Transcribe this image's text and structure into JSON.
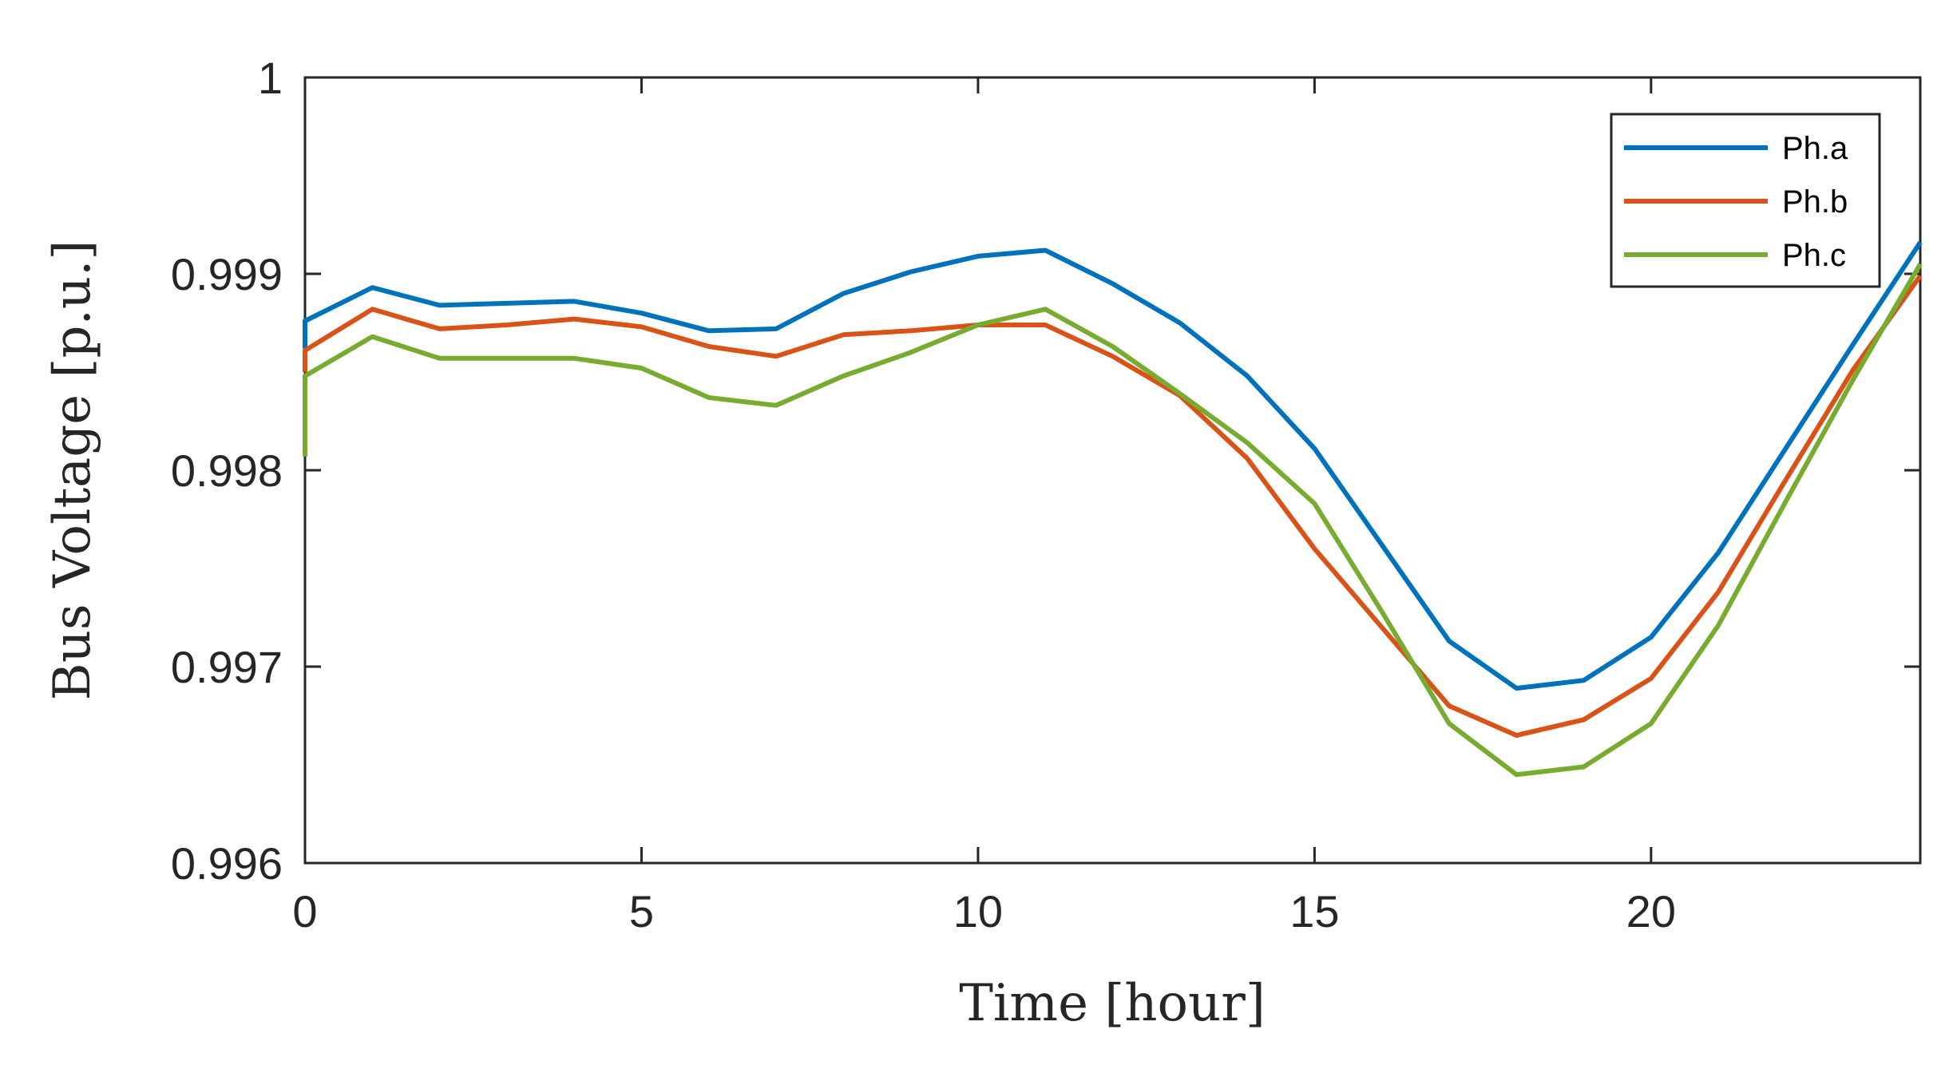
{
  "chart_data": {
    "type": "line",
    "xlabel": "Time [hour]",
    "ylabel": "Bus Voltage [p.u.]",
    "xlim": [
      0,
      24
    ],
    "ylim": [
      0.996,
      1.0
    ],
    "xticks": [
      0,
      5,
      10,
      15,
      20
    ],
    "xtick_labels": [
      "0",
      "5",
      "10",
      "15",
      "20"
    ],
    "yticks": [
      0.996,
      0.997,
      0.998,
      0.999,
      1.0
    ],
    "ytick_labels": [
      "0.996",
      "0.997",
      "0.998",
      "0.999",
      "1"
    ],
    "grid": false,
    "legend": "top-right",
    "x": [
      0,
      0,
      1,
      2,
      3,
      4,
      5,
      6,
      7,
      8,
      9,
      10,
      11,
      12,
      13,
      14,
      15,
      16,
      17,
      18,
      19,
      20,
      21,
      22,
      23,
      24
    ],
    "series": [
      {
        "name": "Ph.a",
        "color": "#0072BD",
        "values": [
          0.99862,
          0.99876,
          0.99893,
          0.99884,
          0.99885,
          0.99886,
          0.9988,
          0.99871,
          0.99872,
          0.9989,
          0.99901,
          0.99909,
          0.99912,
          0.99895,
          0.99875,
          0.99848,
          0.99811,
          0.99762,
          0.99713,
          0.99689,
          0.99693,
          0.99715,
          0.99758,
          0.99811,
          0.99864,
          0.99916
        ]
      },
      {
        "name": "Ph.b",
        "color": "#D95319",
        "values": [
          0.9985,
          0.99861,
          0.99882,
          0.99872,
          0.99874,
          0.99877,
          0.99873,
          0.99863,
          0.99858,
          0.99869,
          0.99871,
          0.99874,
          0.99874,
          0.99858,
          0.99838,
          0.99806,
          0.9976,
          0.9972,
          0.9968,
          0.99665,
          0.99673,
          0.99694,
          0.99738,
          0.99795,
          0.99851,
          0.99899
        ]
      },
      {
        "name": "Ph.c",
        "color": "#77AC30",
        "values": [
          0.99807,
          0.99848,
          0.99868,
          0.99857,
          0.99857,
          0.99857,
          0.99852,
          0.99837,
          0.99833,
          0.99848,
          0.9986,
          0.99874,
          0.99882,
          0.99863,
          0.99839,
          0.99814,
          0.99783,
          0.99728,
          0.99671,
          0.99645,
          0.99649,
          0.99671,
          0.99721,
          0.99784,
          0.99846,
          0.99905
        ]
      }
    ]
  }
}
